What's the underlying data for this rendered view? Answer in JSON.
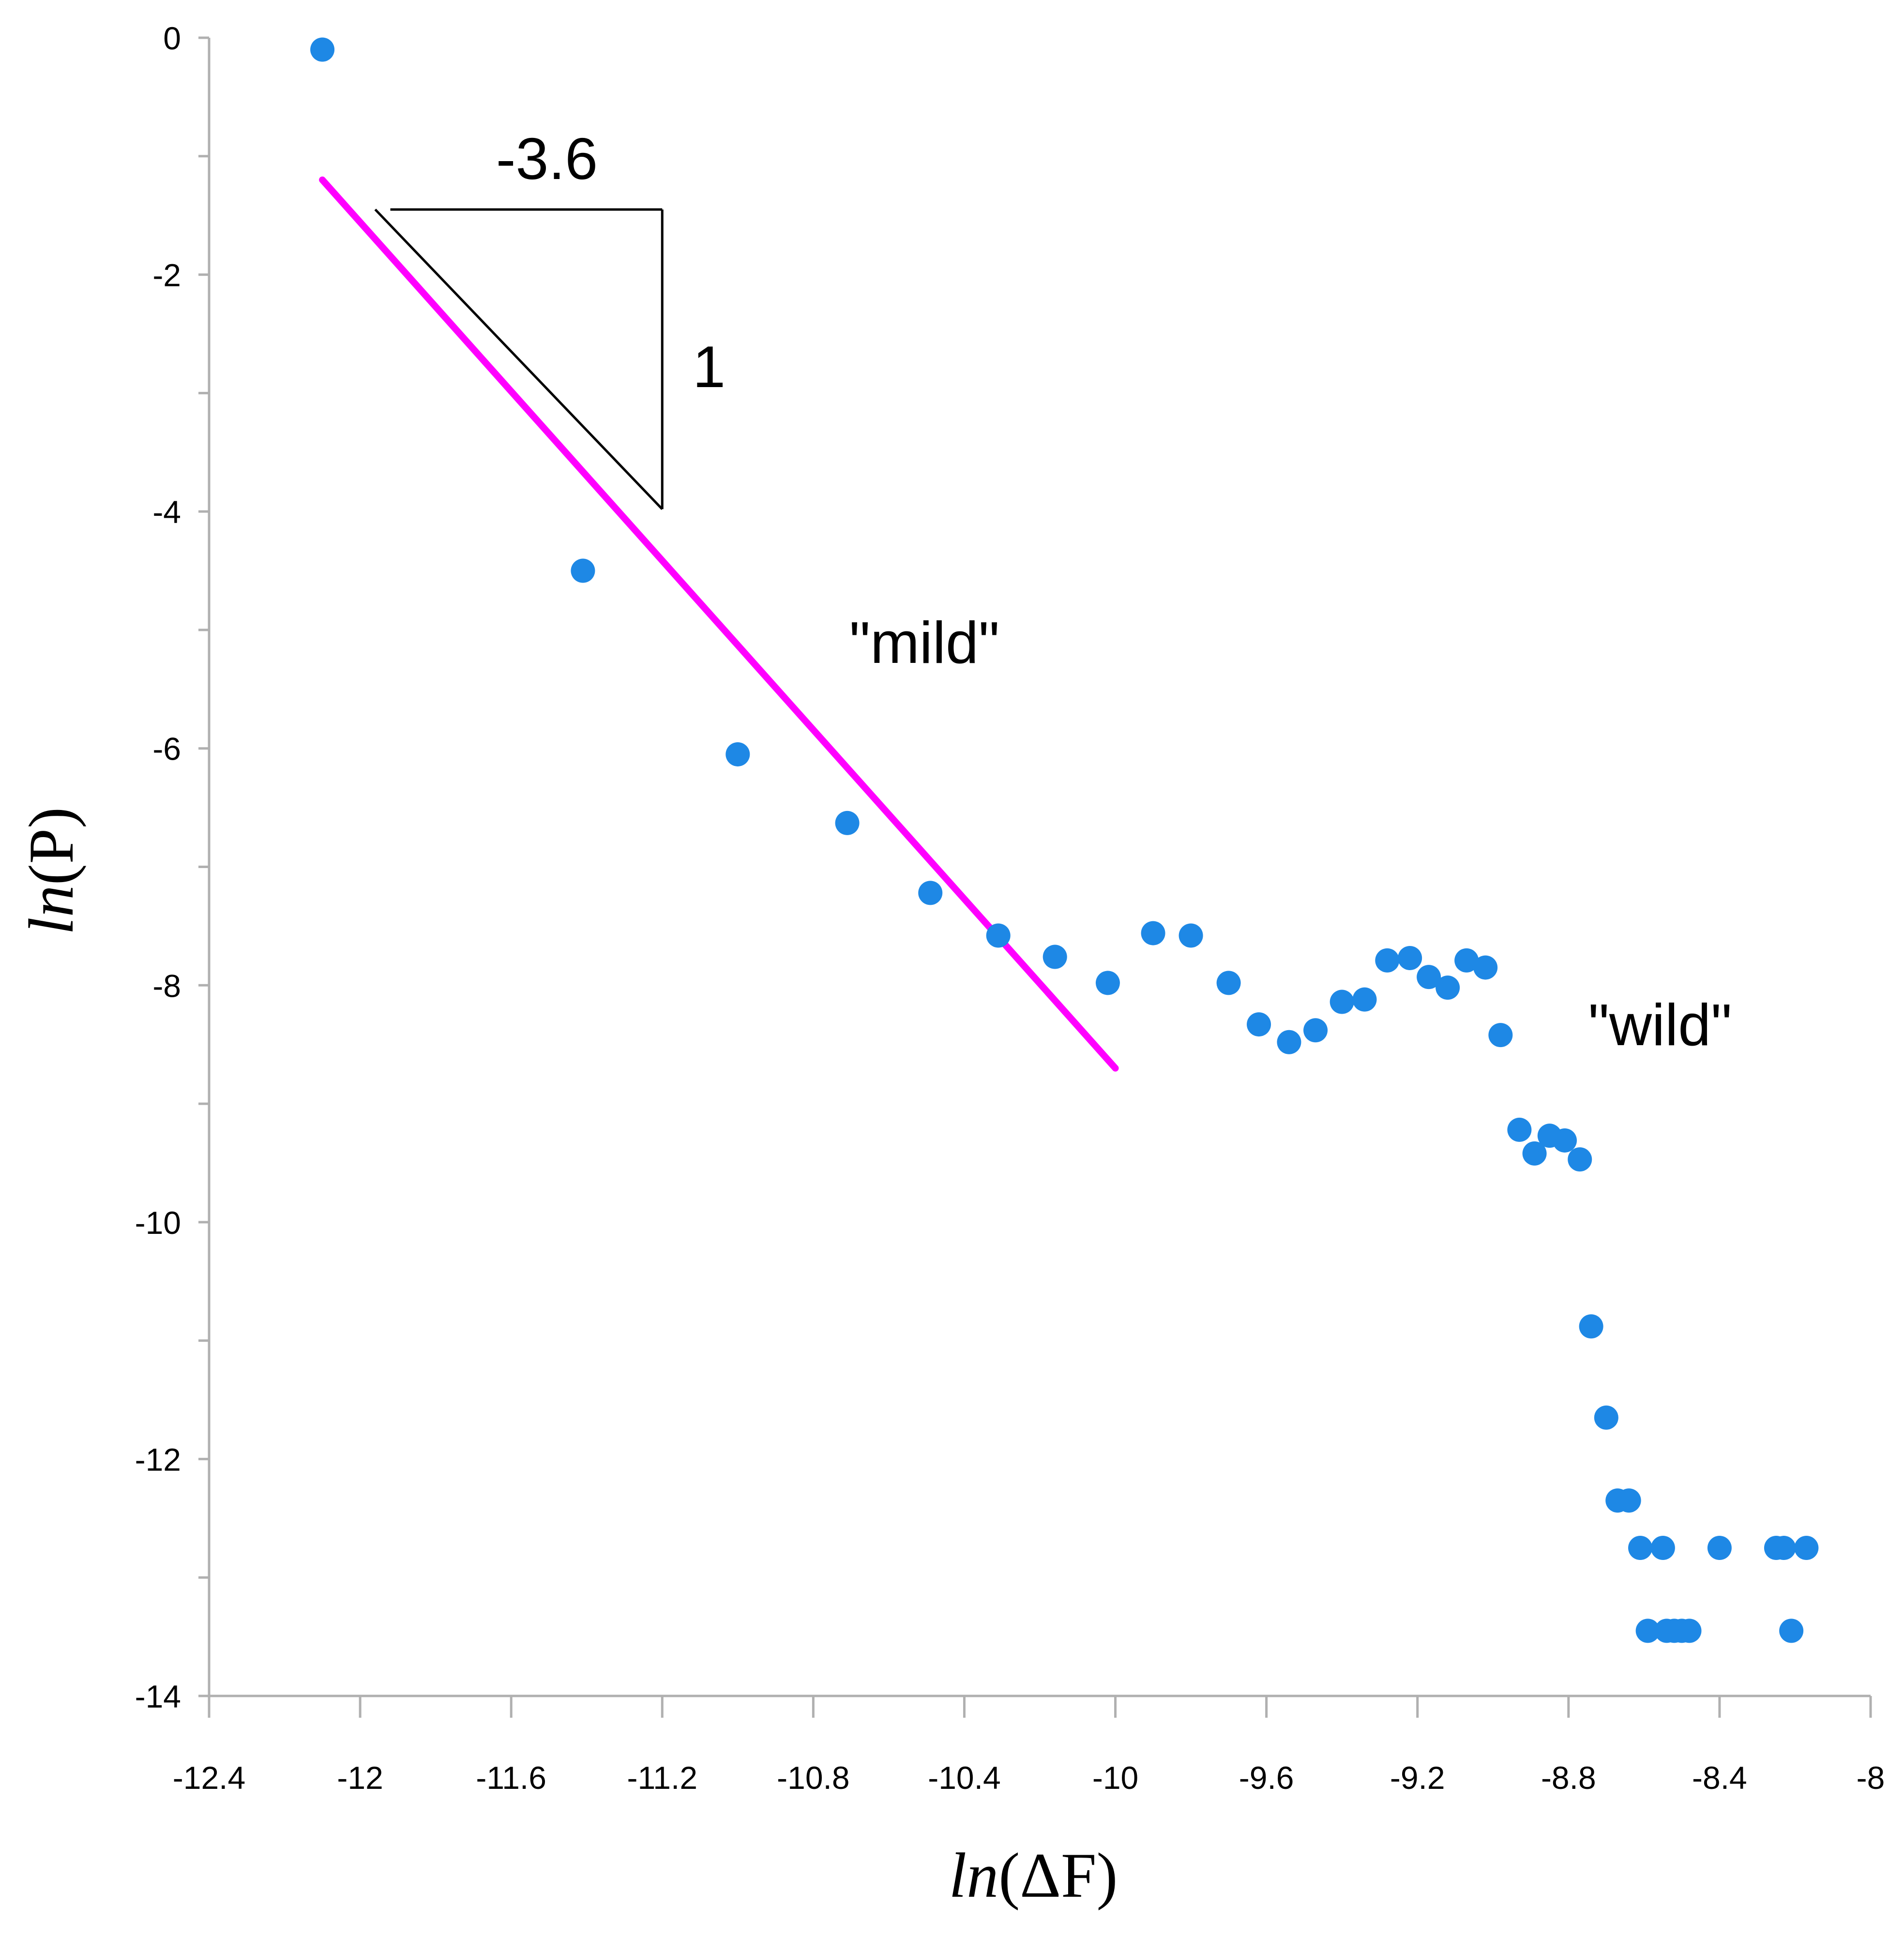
{
  "chart_data": {
    "type": "scatter",
    "title": "",
    "xlabel": {
      "italic": "ln",
      "rest": "(ΔF)"
    },
    "ylabel": {
      "italic": "ln",
      "rest": "(P)"
    },
    "xlim": [
      -12.4,
      -8
    ],
    "ylim": [
      -14,
      0
    ],
    "x_ticks": [
      -12.4,
      -12,
      -11.6,
      -11.2,
      -10.8,
      -10.4,
      -10,
      -9.6,
      -9.2,
      -8.8,
      -8.4,
      -8
    ],
    "x_tick_labels": [
      "-12.4",
      "-12",
      "-11.6",
      "-11.2",
      "-10.8",
      "-10.4",
      "-10",
      "-9.6",
      "-9.2",
      "-8.8",
      "-8.4",
      "-8"
    ],
    "y_ticks": [
      0,
      -2,
      -4,
      -6,
      -8,
      -10,
      -12,
      -14
    ],
    "y_tick_labels": [
      "0",
      "-2",
      "-4",
      "-6",
      "-8",
      "-10",
      "-12",
      "-14"
    ],
    "grid": false,
    "colors": {
      "points": "#1e88e5",
      "fit_line": "#ff00ff",
      "axis": "#b0b0b0",
      "annotation": "#000000"
    },
    "series": [
      {
        "name": "data",
        "points": [
          [
            -12.1,
            -0.1
          ],
          [
            -11.41,
            -4.5
          ],
          [
            -11.0,
            -6.05
          ],
          [
            -10.71,
            -6.63
          ],
          [
            -10.49,
            -7.22
          ],
          [
            -10.31,
            -7.58
          ],
          [
            -10.16,
            -7.76
          ],
          [
            -10.02,
            -7.98
          ],
          [
            -9.9,
            -7.56
          ],
          [
            -9.8,
            -7.58
          ],
          [
            -9.7,
            -7.98
          ],
          [
            -9.62,
            -8.33
          ],
          [
            -9.54,
            -8.48
          ],
          [
            -9.47,
            -8.38
          ],
          [
            -9.4,
            -8.14
          ],
          [
            -9.34,
            -8.12
          ],
          [
            -9.28,
            -7.79
          ],
          [
            -9.22,
            -7.77
          ],
          [
            -9.17,
            -7.93
          ],
          [
            -9.12,
            -8.02
          ],
          [
            -9.07,
            -7.79
          ],
          [
            -9.02,
            -7.85
          ],
          [
            -8.98,
            -8.42
          ],
          [
            -8.93,
            -9.22
          ],
          [
            -8.89,
            -9.42
          ],
          [
            -8.85,
            -9.27
          ],
          [
            -8.81,
            -9.31
          ],
          [
            -8.77,
            -9.47
          ],
          [
            -8.74,
            -10.88
          ],
          [
            -8.7,
            -11.65
          ],
          [
            -8.67,
            -12.35
          ],
          [
            -8.64,
            -12.35
          ],
          [
            -8.61,
            -12.75
          ],
          [
            -8.59,
            -13.45
          ],
          [
            -8.55,
            -12.75
          ],
          [
            -8.54,
            -13.45
          ],
          [
            -8.52,
            -13.45
          ],
          [
            -8.5,
            -13.45
          ],
          [
            -8.48,
            -13.45
          ],
          [
            -8.4,
            -12.75
          ],
          [
            -8.25,
            -12.75
          ],
          [
            -8.23,
            -12.75
          ],
          [
            -8.21,
            -13.45
          ],
          [
            -8.17,
            -12.75
          ]
        ]
      }
    ],
    "fit_line": {
      "name": "fit",
      "from": [
        -12.1,
        -1.2
      ],
      "to": [
        -10.0,
        -8.7
      ]
    },
    "slope_triangle": {
      "vertices": [
        [
          -11.92,
          -1.45
        ],
        [
          -11.2,
          -1.45
        ],
        [
          -11.2,
          -3.98
        ]
      ],
      "hyp_start": [
        -11.96,
        -1.45
      ]
    },
    "annotations": {
      "run_label": "-3.6",
      "rise_label": "1",
      "mild_label": "\"mild\"",
      "wild_label": "\"wild\""
    }
  }
}
